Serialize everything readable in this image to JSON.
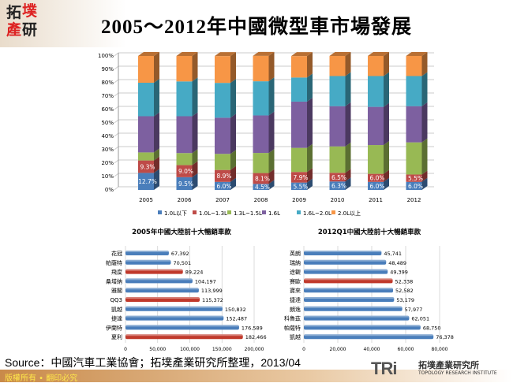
{
  "header": {
    "logo_text": [
      "拓",
      "墣",
      "產",
      "研"
    ],
    "title": "2005～2012年中國微型車市場發展"
  },
  "chart_data": [
    {
      "type": "bar",
      "stacked": true,
      "percent": true,
      "three_d": true,
      "categories": [
        "2005",
        "2006",
        "2007",
        "2008",
        "2009",
        "2010",
        "2011",
        "2012"
      ],
      "ylim": [
        0,
        100
      ],
      "yticks": [
        "0%",
        "10%",
        "20%",
        "30%",
        "40%",
        "50%",
        "60%",
        "70%",
        "80%",
        "90%",
        "100%"
      ],
      "grid": true,
      "legend": "bottom",
      "series": [
        {
          "name": "1.0L以下",
          "color": "#4a7ebb",
          "values": [
            12.7,
            9.5,
            6.0,
            4.5,
            5.5,
            6.3,
            6.0,
            6.0
          ],
          "labels": [
            "12.7%",
            "9.5%",
            "6.0%",
            "4.5%",
            "5.5%",
            "6.3%",
            "6.0%",
            "6.0%"
          ]
        },
        {
          "name": "1.0L~1.3L",
          "color": "#be4b48",
          "values": [
            9.3,
            9.0,
            8.9,
            8.1,
            7.9,
            6.5,
            6.0,
            5.5
          ],
          "labels": [
            "9.3%",
            "9.0%",
            "8.9%",
            "8.1%",
            "7.9%",
            "6.5%",
            "6.0%",
            "5.5%"
          ]
        },
        {
          "name": "1.3L~1.5L",
          "color": "#98b954",
          "values": [
            6,
            9,
            12,
            15,
            18,
            19.7,
            21.5,
            24
          ]
        },
        {
          "name": "1.6L",
          "color": "#7d60a0",
          "values": [
            27,
            27.5,
            27,
            28,
            34.5,
            30,
            28.5,
            27
          ]
        },
        {
          "name": "1.6L~2.0L",
          "color": "#46aac5",
          "values": [
            25,
            26,
            26,
            25.5,
            18,
            22.5,
            23,
            22.5
          ]
        },
        {
          "name": "2.0L以上",
          "color": "#f79646",
          "values": [
            20,
            19,
            20,
            19,
            16,
            15,
            15,
            15
          ]
        }
      ]
    },
    {
      "type": "bar",
      "orientation": "horizontal",
      "title": "2005年中國大陸前十大暢銷車款",
      "categories": [
        "花冠",
        "帕薩特",
        "飛度",
        "桑塔納",
        "雅閣",
        "QQ3",
        "凱越",
        "捷達",
        "伊蘭特",
        "夏利"
      ],
      "values": [
        67392,
        70501,
        89224,
        104197,
        113999,
        115372,
        150832,
        152487,
        176589,
        182466
      ],
      "labels": [
        "67,392",
        "70,501",
        "89,224",
        "104,197",
        "113,999",
        "115,372",
        "150,832",
        "152,487",
        "176,589",
        "182,466"
      ],
      "highlight": [
        false,
        false,
        true,
        false,
        false,
        true,
        false,
        false,
        false,
        true
      ],
      "xlim": [
        0,
        200000
      ],
      "xticks": [
        "0",
        "50,000",
        "100,000",
        "150,000",
        "200,000"
      ]
    },
    {
      "type": "bar",
      "orientation": "horizontal",
      "title": "2012Q1中國大陸前十大暢銷車款",
      "categories": [
        "英朗",
        "瑞納",
        "途觀",
        "賽歐",
        "寶來",
        "捷達",
        "朗逸",
        "科魯茲",
        "帕薩特",
        "凱越"
      ],
      "values": [
        45741,
        48489,
        49399,
        52338,
        52582,
        53179,
        57977,
        62051,
        68750,
        76378
      ],
      "labels": [
        "45,741",
        "48,489",
        "49,399",
        "52,338",
        "52,582",
        "53,179",
        "57,977",
        "62,051",
        "68,750",
        "76,378"
      ],
      "highlight": [
        false,
        false,
        false,
        true,
        false,
        false,
        false,
        false,
        false,
        false
      ],
      "xlim": [
        0,
        80000
      ],
      "xticks": [
        "0",
        "20,000",
        "40,000",
        "60,000",
        "80,000"
      ]
    }
  ],
  "colors": {
    "bar_blue": "#4a7ebb",
    "bar_red": "#c0392b"
  },
  "footer": {
    "source": "Source：中國汽車工業協會；拓墣產業研究所整理，2013/04",
    "copyright": "版權所有 • 翻印必究",
    "brand": "TRi",
    "brand_name": "拓墣產業研究所",
    "brand_en": "TOPOLOGY RESEARCH INSTITUTE"
  }
}
